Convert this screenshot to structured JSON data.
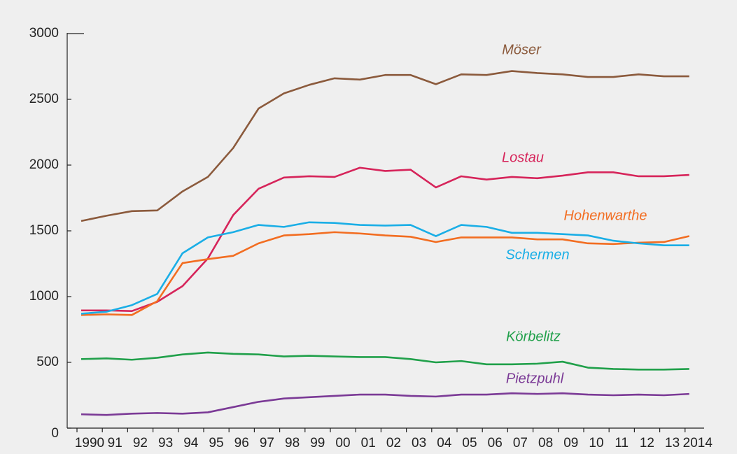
{
  "chart_data": {
    "type": "line",
    "categories": [
      "1990",
      "91",
      "92",
      "93",
      "94",
      "95",
      "96",
      "97",
      "98",
      "99",
      "00",
      "01",
      "02",
      "03",
      "04",
      "05",
      "06",
      "07",
      "08",
      "09",
      "10",
      "11",
      "12",
      "13",
      "2014"
    ],
    "series": [
      {
        "name": "Möser",
        "color": "#8b5a3c",
        "values": [
          1575,
          1615,
          1650,
          1655,
          1800,
          1910,
          2130,
          2430,
          2545,
          2610,
          2660,
          2650,
          2685,
          2685,
          2615,
          2690,
          2685,
          2715,
          2700,
          2690,
          2670,
          2670,
          2690,
          2675,
          2675
        ]
      },
      {
        "name": "Lostau",
        "color": "#d6245a",
        "values": [
          895,
          895,
          890,
          960,
          1080,
          1290,
          1620,
          1820,
          1905,
          1915,
          1910,
          1980,
          1955,
          1965,
          1830,
          1915,
          1890,
          1910,
          1900,
          1920,
          1945,
          1945,
          1915,
          1915,
          1925
        ]
      },
      {
        "name": "Hohenwarthe",
        "color": "#f26d21",
        "values": [
          860,
          865,
          860,
          965,
          1255,
          1285,
          1310,
          1405,
          1465,
          1475,
          1490,
          1480,
          1465,
          1455,
          1415,
          1450,
          1450,
          1450,
          1435,
          1435,
          1405,
          1400,
          1410,
          1415,
          1460
        ]
      },
      {
        "name": "Schermen",
        "color": "#1aaee6",
        "values": [
          870,
          885,
          935,
          1020,
          1330,
          1450,
          1490,
          1545,
          1530,
          1565,
          1560,
          1545,
          1540,
          1545,
          1460,
          1545,
          1530,
          1485,
          1485,
          1475,
          1465,
          1425,
          1405,
          1390,
          1390
        ]
      },
      {
        "name": "Körbelitz",
        "color": "#20a04a",
        "values": [
          525,
          530,
          520,
          535,
          560,
          575,
          565,
          560,
          545,
          550,
          545,
          540,
          540,
          525,
          500,
          510,
          485,
          485,
          490,
          505,
          460,
          450,
          445,
          445,
          450
        ]
      },
      {
        "name": "Pietzpuhl",
        "color": "#7b3a96",
        "values": [
          105,
          100,
          110,
          115,
          110,
          120,
          160,
          200,
          225,
          235,
          245,
          255,
          255,
          245,
          240,
          255,
          255,
          265,
          260,
          265,
          255,
          250,
          255,
          250,
          260
        ]
      }
    ],
    "ylim": [
      0,
      3000
    ],
    "yticks": [
      0,
      500,
      1000,
      1500,
      2000,
      2500,
      3000
    ]
  }
}
